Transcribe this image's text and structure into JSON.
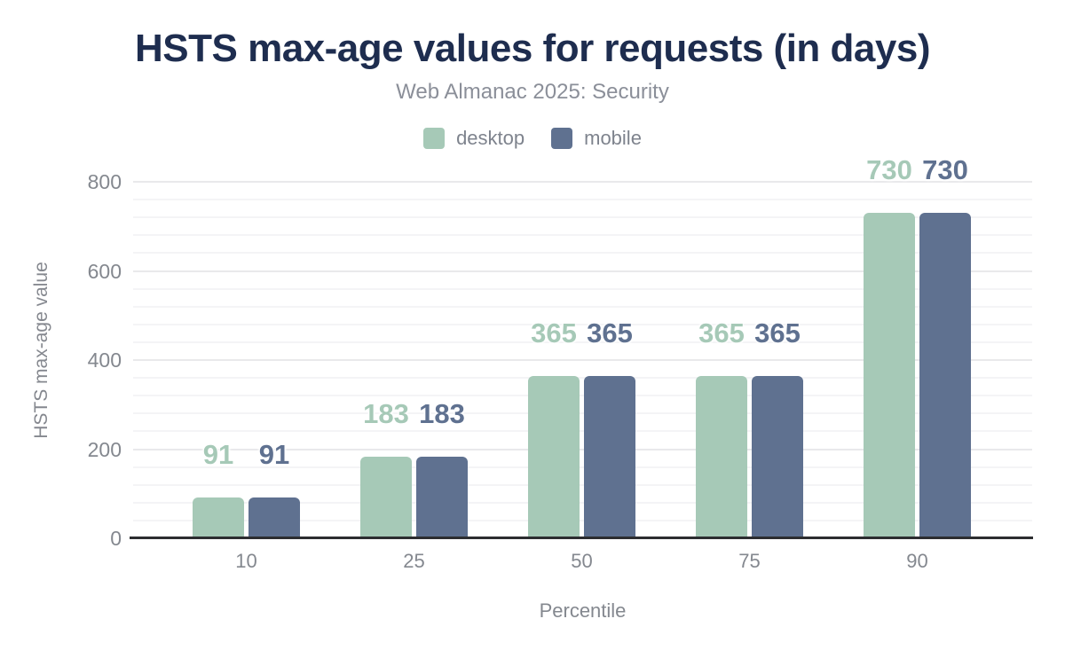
{
  "chart_data": {
    "type": "bar",
    "title": "HSTS max-age values for requests (in days)",
    "subtitle": "Web Almanac 2025: Security",
    "xlabel": "Percentile",
    "ylabel": "HSTS max-age value",
    "categories": [
      "10",
      "25",
      "50",
      "75",
      "90"
    ],
    "series": [
      {
        "name": "desktop",
        "color": "#a6c9b7",
        "values": [
          91,
          183,
          365,
          365,
          730
        ]
      },
      {
        "name": "mobile",
        "color": "#5f7190",
        "values": [
          91,
          183,
          365,
          365,
          730
        ]
      }
    ],
    "ylim": [
      0,
      800
    ],
    "yticks": [
      0,
      200,
      400,
      600,
      800
    ],
    "minor_grid_step": 40,
    "grid": "on",
    "legend_position": "top",
    "bar_value_labels": true,
    "title_color": "#1e2d4f",
    "axis_label_color": "#84888f",
    "axis_line_color": "#2c2d30"
  }
}
